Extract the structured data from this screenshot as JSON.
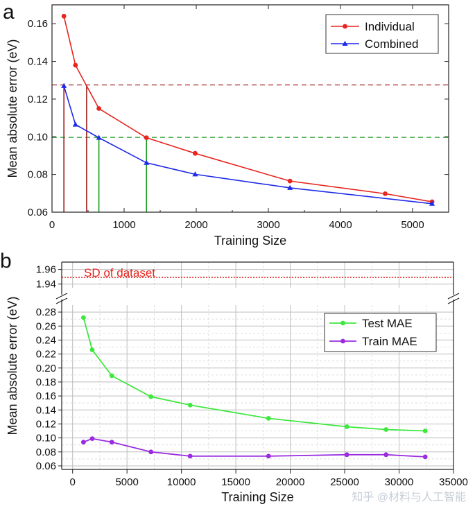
{
  "watermark": "知乎 @材料与人工智能",
  "chart_data": [
    {
      "panel_label": "a",
      "type": "line",
      "xlabel": "Training Size",
      "ylabel": "Mean absolute error (eV)",
      "xlim": [
        0,
        5500
      ],
      "ylim": [
        0.06,
        0.17
      ],
      "xticks": [
        0,
        1000,
        2000,
        3000,
        4000,
        5000
      ],
      "xtick_labels": [
        "0",
        "1000",
        "2000",
        "3000",
        "4000",
        "5000"
      ],
      "yticks": [
        0.06,
        0.08,
        0.1,
        0.12,
        0.14,
        0.16
      ],
      "ytick_labels": [
        "0.06",
        "0.08",
        "0.10",
        "0.12",
        "0.14",
        "0.16"
      ],
      "legend_position": "top-right",
      "series": [
        {
          "name": "Individual",
          "color": "#e8251f",
          "marker": "circle",
          "x": [
            165,
            325,
            650,
            1310,
            1985,
            3300,
            4620,
            5270
          ],
          "y": [
            0.164,
            0.138,
            0.115,
            0.0995,
            0.0912,
            0.0765,
            0.0698,
            0.0655
          ]
        },
        {
          "name": "Combined",
          "color": "#1f2be8",
          "marker": "triangle",
          "x": [
            165,
            325,
            650,
            1310,
            1985,
            3300,
            5270
          ],
          "y": [
            0.127,
            0.1065,
            0.0995,
            0.0862,
            0.0801,
            0.0729,
            0.0645
          ]
        }
      ],
      "reference_lines": [
        {
          "orientation": "horizontal",
          "y": 0.1275,
          "color": "#a02020",
          "style": "dashed"
        },
        {
          "orientation": "horizontal",
          "y": 0.0997,
          "color": "#1a9a1a",
          "style": "dashed"
        },
        {
          "orientation": "vertical",
          "x": 165,
          "from": 0.06,
          "to": 0.1275,
          "color": "#a02020"
        },
        {
          "orientation": "vertical",
          "x": 480,
          "from": 0.06,
          "to": 0.1275,
          "color": "#a02020"
        },
        {
          "orientation": "vertical",
          "x": 650,
          "from": 0.06,
          "to": 0.0997,
          "color": "#1a9a1a"
        },
        {
          "orientation": "vertical",
          "x": 1310,
          "from": 0.06,
          "to": 0.0997,
          "color": "#1a9a1a"
        }
      ]
    },
    {
      "panel_label": "b",
      "type": "line",
      "xlabel": "Training Size",
      "ylabel": "Mean absolute error (eV)",
      "xlim": [
        -1000,
        35000
      ],
      "xticks": [
        0,
        5000,
        10000,
        15000,
        20000,
        25000,
        30000,
        35000
      ],
      "xtick_labels": [
        "0",
        "5000",
        "10000",
        "15000",
        "20000",
        "25000",
        "30000",
        "35000"
      ],
      "y_axis_break": true,
      "ylim_upper": [
        1.935,
        1.97
      ],
      "yticks_upper": [
        1.94,
        1.96
      ],
      "ytick_labels_upper": [
        "1.94",
        "1.96"
      ],
      "ylim_lower": [
        0.055,
        0.29
      ],
      "yticks_lower": [
        0.06,
        0.08,
        0.1,
        0.12,
        0.14,
        0.16,
        0.18,
        0.2,
        0.22,
        0.24,
        0.26,
        0.28
      ],
      "ytick_labels_lower": [
        "0.06",
        "0.08",
        "0.10",
        "0.12",
        "0.14",
        "0.16",
        "0.18",
        "0.20",
        "0.22",
        "0.24",
        "0.26",
        "0.28"
      ],
      "grid": true,
      "legend_position": "top-right",
      "annotation": {
        "text": "SD of dataset",
        "y": 1.949,
        "color": "#e8251f",
        "style": "dotted"
      },
      "series": [
        {
          "name": "Test MAE",
          "color": "#3ee83e",
          "marker": "circle",
          "x": [
            1000,
            1800,
            3600,
            7200,
            10800,
            18000,
            25200,
            28800,
            32400
          ],
          "y": [
            0.272,
            0.226,
            0.189,
            0.159,
            0.147,
            0.128,
            0.116,
            0.112,
            0.11
          ]
        },
        {
          "name": "Train MAE",
          "color": "#9a2be0",
          "marker": "circle",
          "x": [
            1000,
            1800,
            3600,
            7200,
            10800,
            18000,
            25200,
            28800,
            32400
          ],
          "y": [
            0.094,
            0.099,
            0.094,
            0.08,
            0.074,
            0.074,
            0.076,
            0.076,
            0.073
          ]
        }
      ]
    }
  ]
}
